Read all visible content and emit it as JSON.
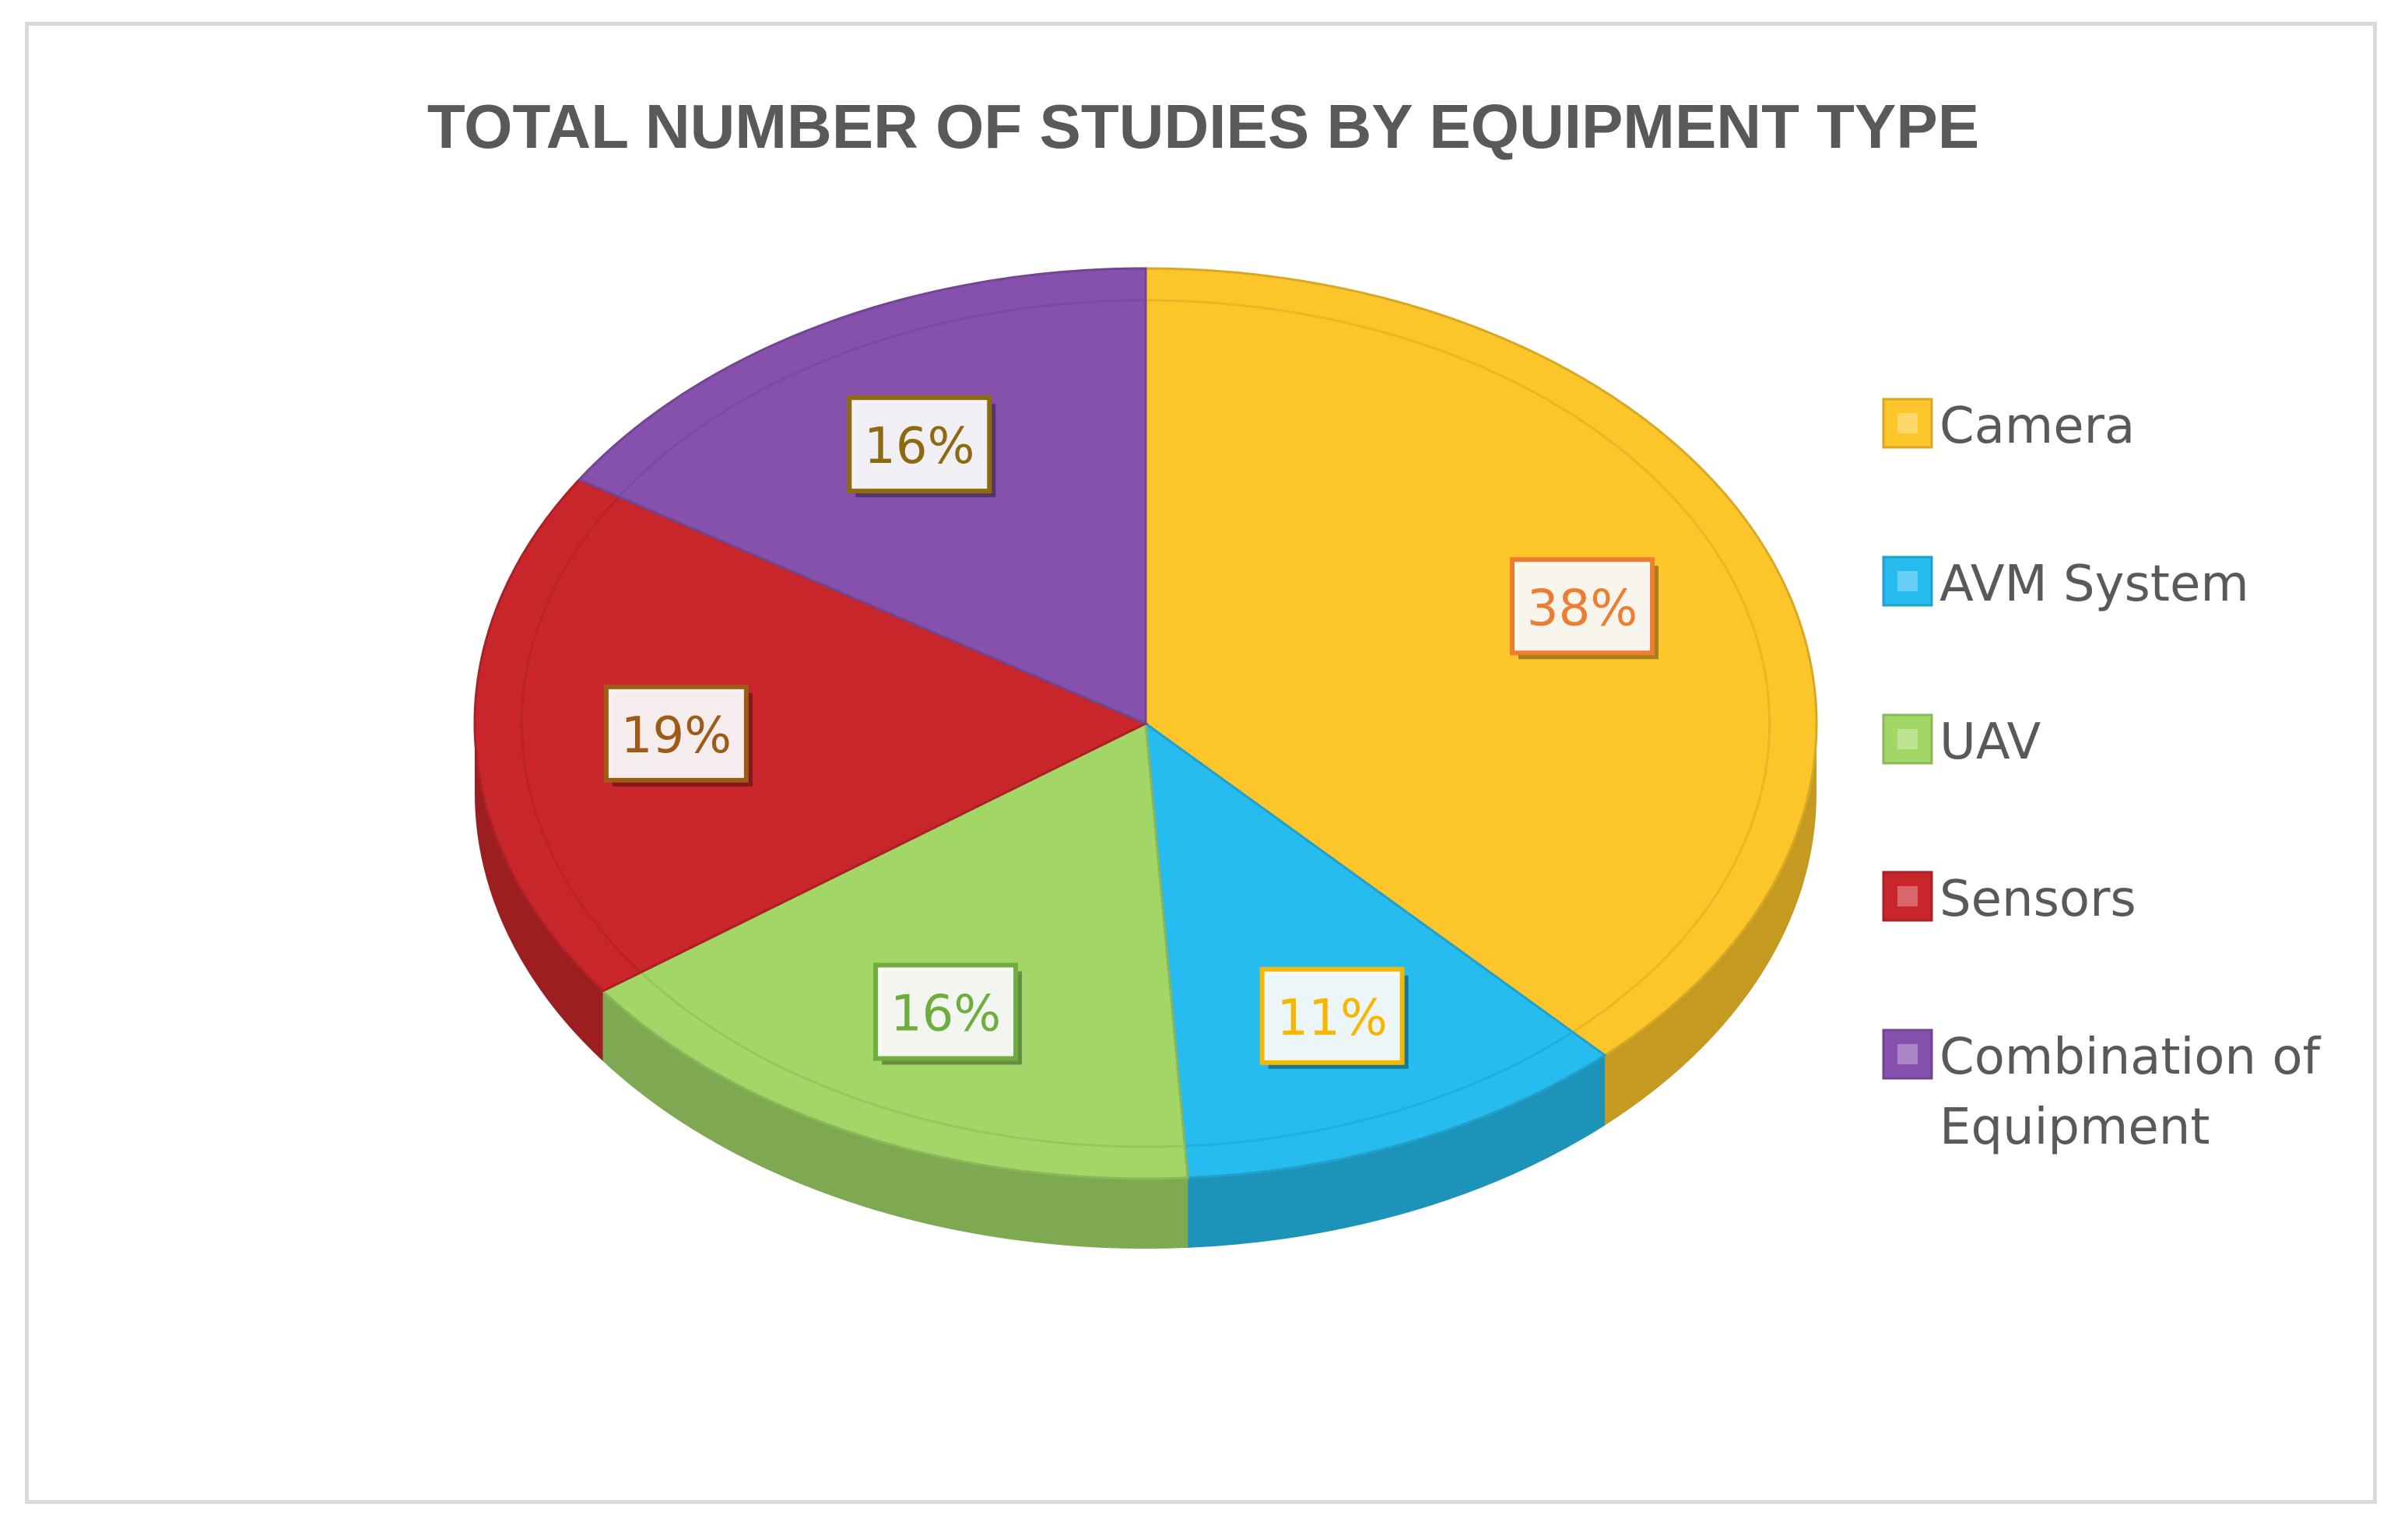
{
  "chart_data": {
    "type": "pie",
    "style": "3d",
    "title": "TOTAL NUMBER OF STUDIES BY EQUIPMENT TYPE",
    "legend_position": "right",
    "slices": [
      {
        "label": "Camera",
        "value": 38,
        "display": "38%",
        "color": "#FCC62A",
        "label_color": "#ED7D31"
      },
      {
        "label": "AVM System",
        "value": 11,
        "display": "11%",
        "color": "#26BCEF",
        "label_color": "#F5B700"
      },
      {
        "label": "UAV",
        "value": 16,
        "display": "16%",
        "color": "#A2D768",
        "label_color": "#6FAE3E"
      },
      {
        "label": "Sensors",
        "value": 19,
        "display": "19%",
        "color": "#C8262A",
        "label_color": "#9C5B16"
      },
      {
        "label": "Combination of Equipment",
        "value": 16,
        "display": "16%",
        "color": "#8651AC",
        "label_color": "#8B6A10"
      }
    ],
    "legend_lines": [
      [
        "Camera"
      ],
      [
        "AVM System"
      ],
      [
        "UAV"
      ],
      [
        "Sensors"
      ],
      [
        "Combination of",
        "Equipment"
      ]
    ]
  }
}
